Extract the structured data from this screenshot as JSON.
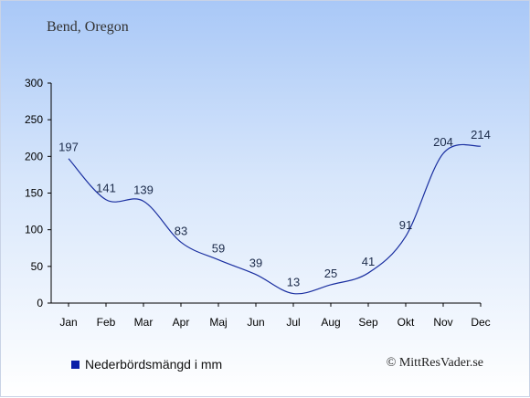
{
  "header": {
    "city": "Bend, Oregon"
  },
  "legend": {
    "label": "Nederbördsmängd i mm",
    "color": "#0a1fa8"
  },
  "credit": "© MittResVader.se",
  "chart_data": {
    "type": "line",
    "title": "",
    "xlabel": "",
    "ylabel": "",
    "ylim": [
      0,
      300
    ],
    "yticks": [
      0,
      50,
      100,
      150,
      200,
      250,
      300
    ],
    "categories": [
      "Jan",
      "Feb",
      "Mar",
      "Apr",
      "Maj",
      "Jun",
      "Jul",
      "Aug",
      "Sep",
      "Okt",
      "Nov",
      "Dec"
    ],
    "series": [
      {
        "name": "Nederbördsmängd i mm",
        "color": "#1a2fa0",
        "values": [
          197,
          141,
          139,
          83,
          59,
          39,
          13,
          25,
          41,
          91,
          204,
          214
        ]
      }
    ],
    "grid": false,
    "legend_position": "bottom-left"
  }
}
